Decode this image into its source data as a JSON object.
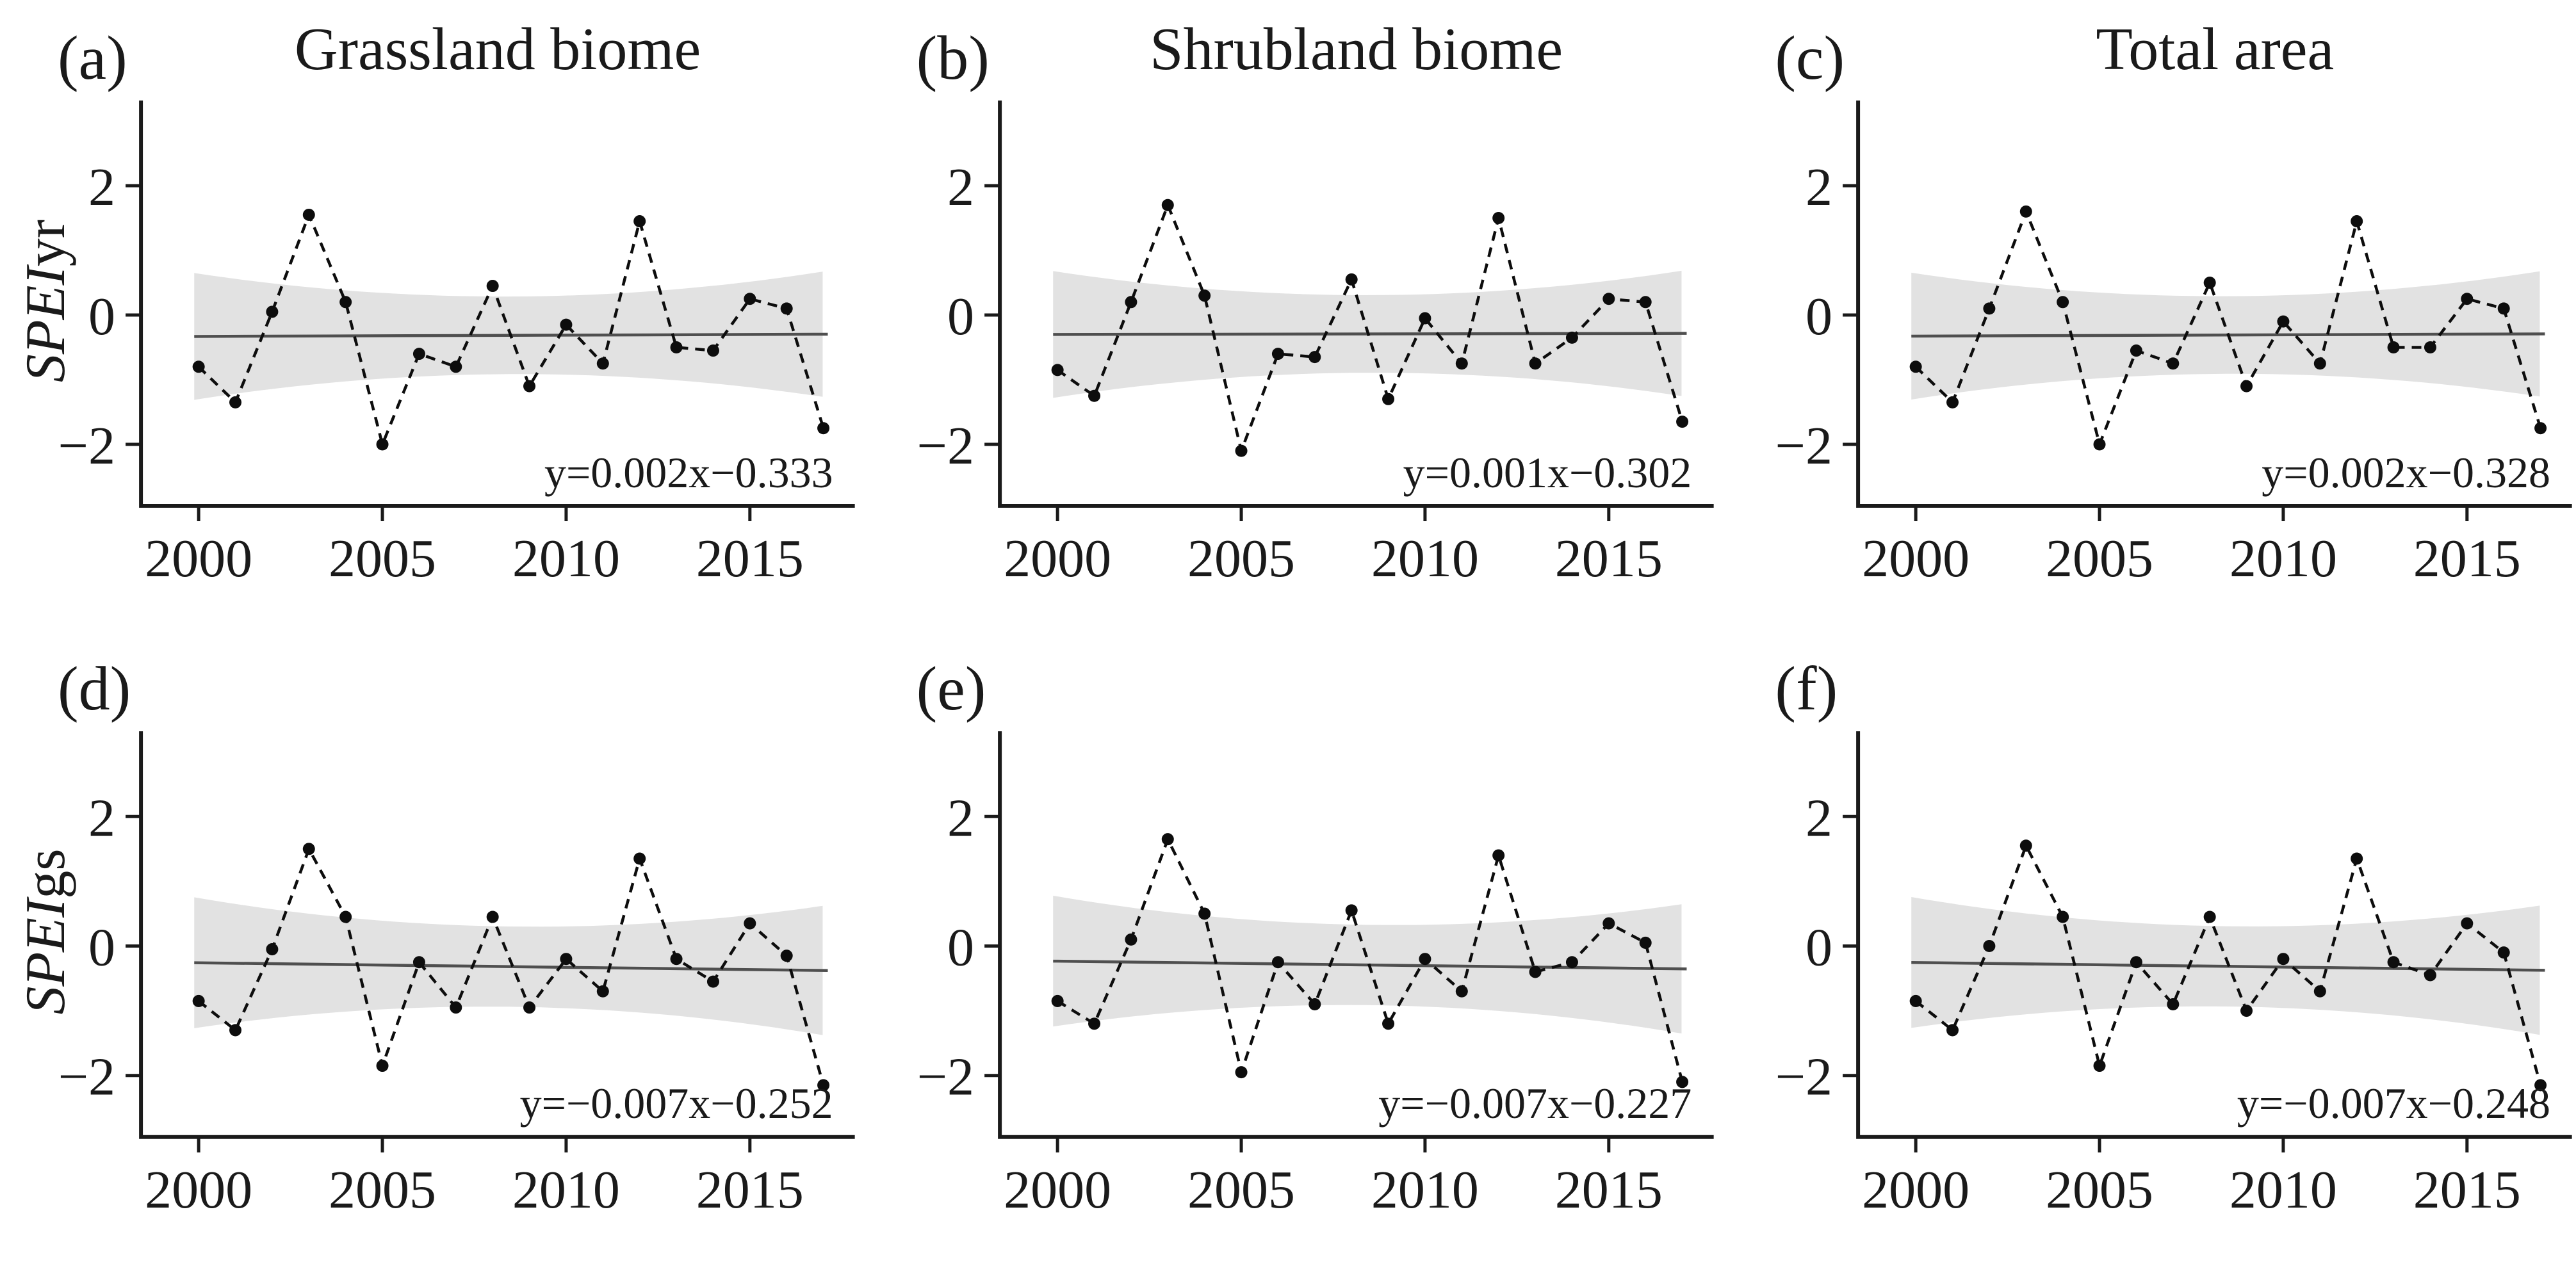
{
  "figure": {
    "background": "#ffffff",
    "description": "Interannual SPEI variations 2000-2017 for grassland, shrubland and total area"
  },
  "chart_data": {
    "type": "line",
    "x_years": [
      2000,
      2001,
      2002,
      2003,
      2004,
      2005,
      2006,
      2007,
      2008,
      2009,
      2010,
      2011,
      2012,
      2013,
      2014,
      2015,
      2016,
      2017
    ],
    "xticks": [
      "2000",
      "2005",
      "2010",
      "2015"
    ],
    "yticks": [
      {
        "v": 2,
        "label": "2"
      },
      {
        "v": 0,
        "label": "0"
      },
      {
        "v": -2,
        "label": "−2"
      }
    ],
    "ylim": [
      -2.95,
      3.32
    ],
    "xlim": [
      1999.1,
      2017.85
    ],
    "legend": "none",
    "grid": false,
    "styles": {
      "band_color": "#e2e2e2",
      "trend_color": "#4f4f4f",
      "series_color": "#0d0d0d",
      "axis_color": "#1a1a1a"
    },
    "panels": [
      {
        "label": "(a)",
        "title": "Grassland biome",
        "ylabel_italic": "SPEI",
        "ylabel_suffix": "yr",
        "equation": "y=0.002x−0.333",
        "slope": 0.002,
        "intercept": -0.333,
        "values": [
          -0.8,
          -1.35,
          0.05,
          1.55,
          0.2,
          -2.0,
          -0.6,
          -0.8,
          0.45,
          -1.1,
          -0.15,
          -0.75,
          1.45,
          -0.5,
          -0.55,
          0.25,
          0.1,
          -1.75
        ],
        "band": {
          "half_mid": 0.6,
          "half_end": 0.97
        }
      },
      {
        "label": "(b)",
        "title": "Shrubland biome",
        "ylabel_italic": null,
        "ylabel_suffix": null,
        "equation": "y=0.001x−0.302",
        "slope": 0.001,
        "intercept": -0.302,
        "values": [
          -0.85,
          -1.25,
          0.2,
          1.7,
          0.3,
          -2.1,
          -0.6,
          -0.65,
          0.55,
          -1.3,
          -0.05,
          -0.75,
          1.5,
          -0.75,
          -0.35,
          0.25,
          0.2,
          -1.65
        ],
        "band": {
          "half_mid": 0.6,
          "half_end": 0.97
        }
      },
      {
        "label": "(c)",
        "title": "Total area",
        "ylabel_italic": null,
        "ylabel_suffix": null,
        "equation": "y=0.002x−0.328",
        "slope": 0.002,
        "intercept": -0.328,
        "values": [
          -0.8,
          -1.35,
          0.1,
          1.6,
          0.2,
          -2.0,
          -0.55,
          -0.75,
          0.5,
          -1.1,
          -0.1,
          -0.75,
          1.45,
          -0.5,
          -0.5,
          0.25,
          0.1,
          -1.75
        ],
        "band": {
          "half_mid": 0.6,
          "half_end": 0.97
        }
      },
      {
        "label": "(d)",
        "title": null,
        "ylabel_italic": "SPEI",
        "ylabel_suffix": "gs",
        "equation": "y=−0.007x−0.252",
        "slope": -0.007,
        "intercept": -0.252,
        "values": [
          -0.85,
          -1.3,
          -0.05,
          1.5,
          0.45,
          -1.85,
          -0.25,
          -0.95,
          0.45,
          -0.95,
          -0.2,
          -0.7,
          1.35,
          -0.2,
          -0.55,
          0.35,
          -0.15,
          -2.15
        ],
        "band": {
          "half_mid": 0.62,
          "half_end": 1.0
        }
      },
      {
        "label": "(e)",
        "title": null,
        "ylabel_italic": null,
        "ylabel_suffix": null,
        "equation": "y=−0.007x−0.227",
        "slope": -0.007,
        "intercept": -0.227,
        "values": [
          -0.85,
          -1.2,
          0.1,
          1.65,
          0.5,
          -1.95,
          -0.25,
          -0.9,
          0.55,
          -1.2,
          -0.2,
          -0.7,
          1.4,
          -0.4,
          -0.25,
          0.35,
          0.05,
          -2.1
        ],
        "band": {
          "half_mid": 0.62,
          "half_end": 1.0
        }
      },
      {
        "label": "(f)",
        "title": null,
        "ylabel_italic": null,
        "ylabel_suffix": null,
        "equation": "y=−0.007x−0.248",
        "slope": -0.007,
        "intercept": -0.248,
        "values": [
          -0.85,
          -1.3,
          0.0,
          1.55,
          0.45,
          -1.85,
          -0.25,
          -0.9,
          0.45,
          -1.0,
          -0.2,
          -0.7,
          1.35,
          -0.25,
          -0.45,
          0.35,
          -0.1,
          -2.15
        ],
        "band": {
          "half_mid": 0.62,
          "half_end": 1.0
        }
      }
    ]
  }
}
